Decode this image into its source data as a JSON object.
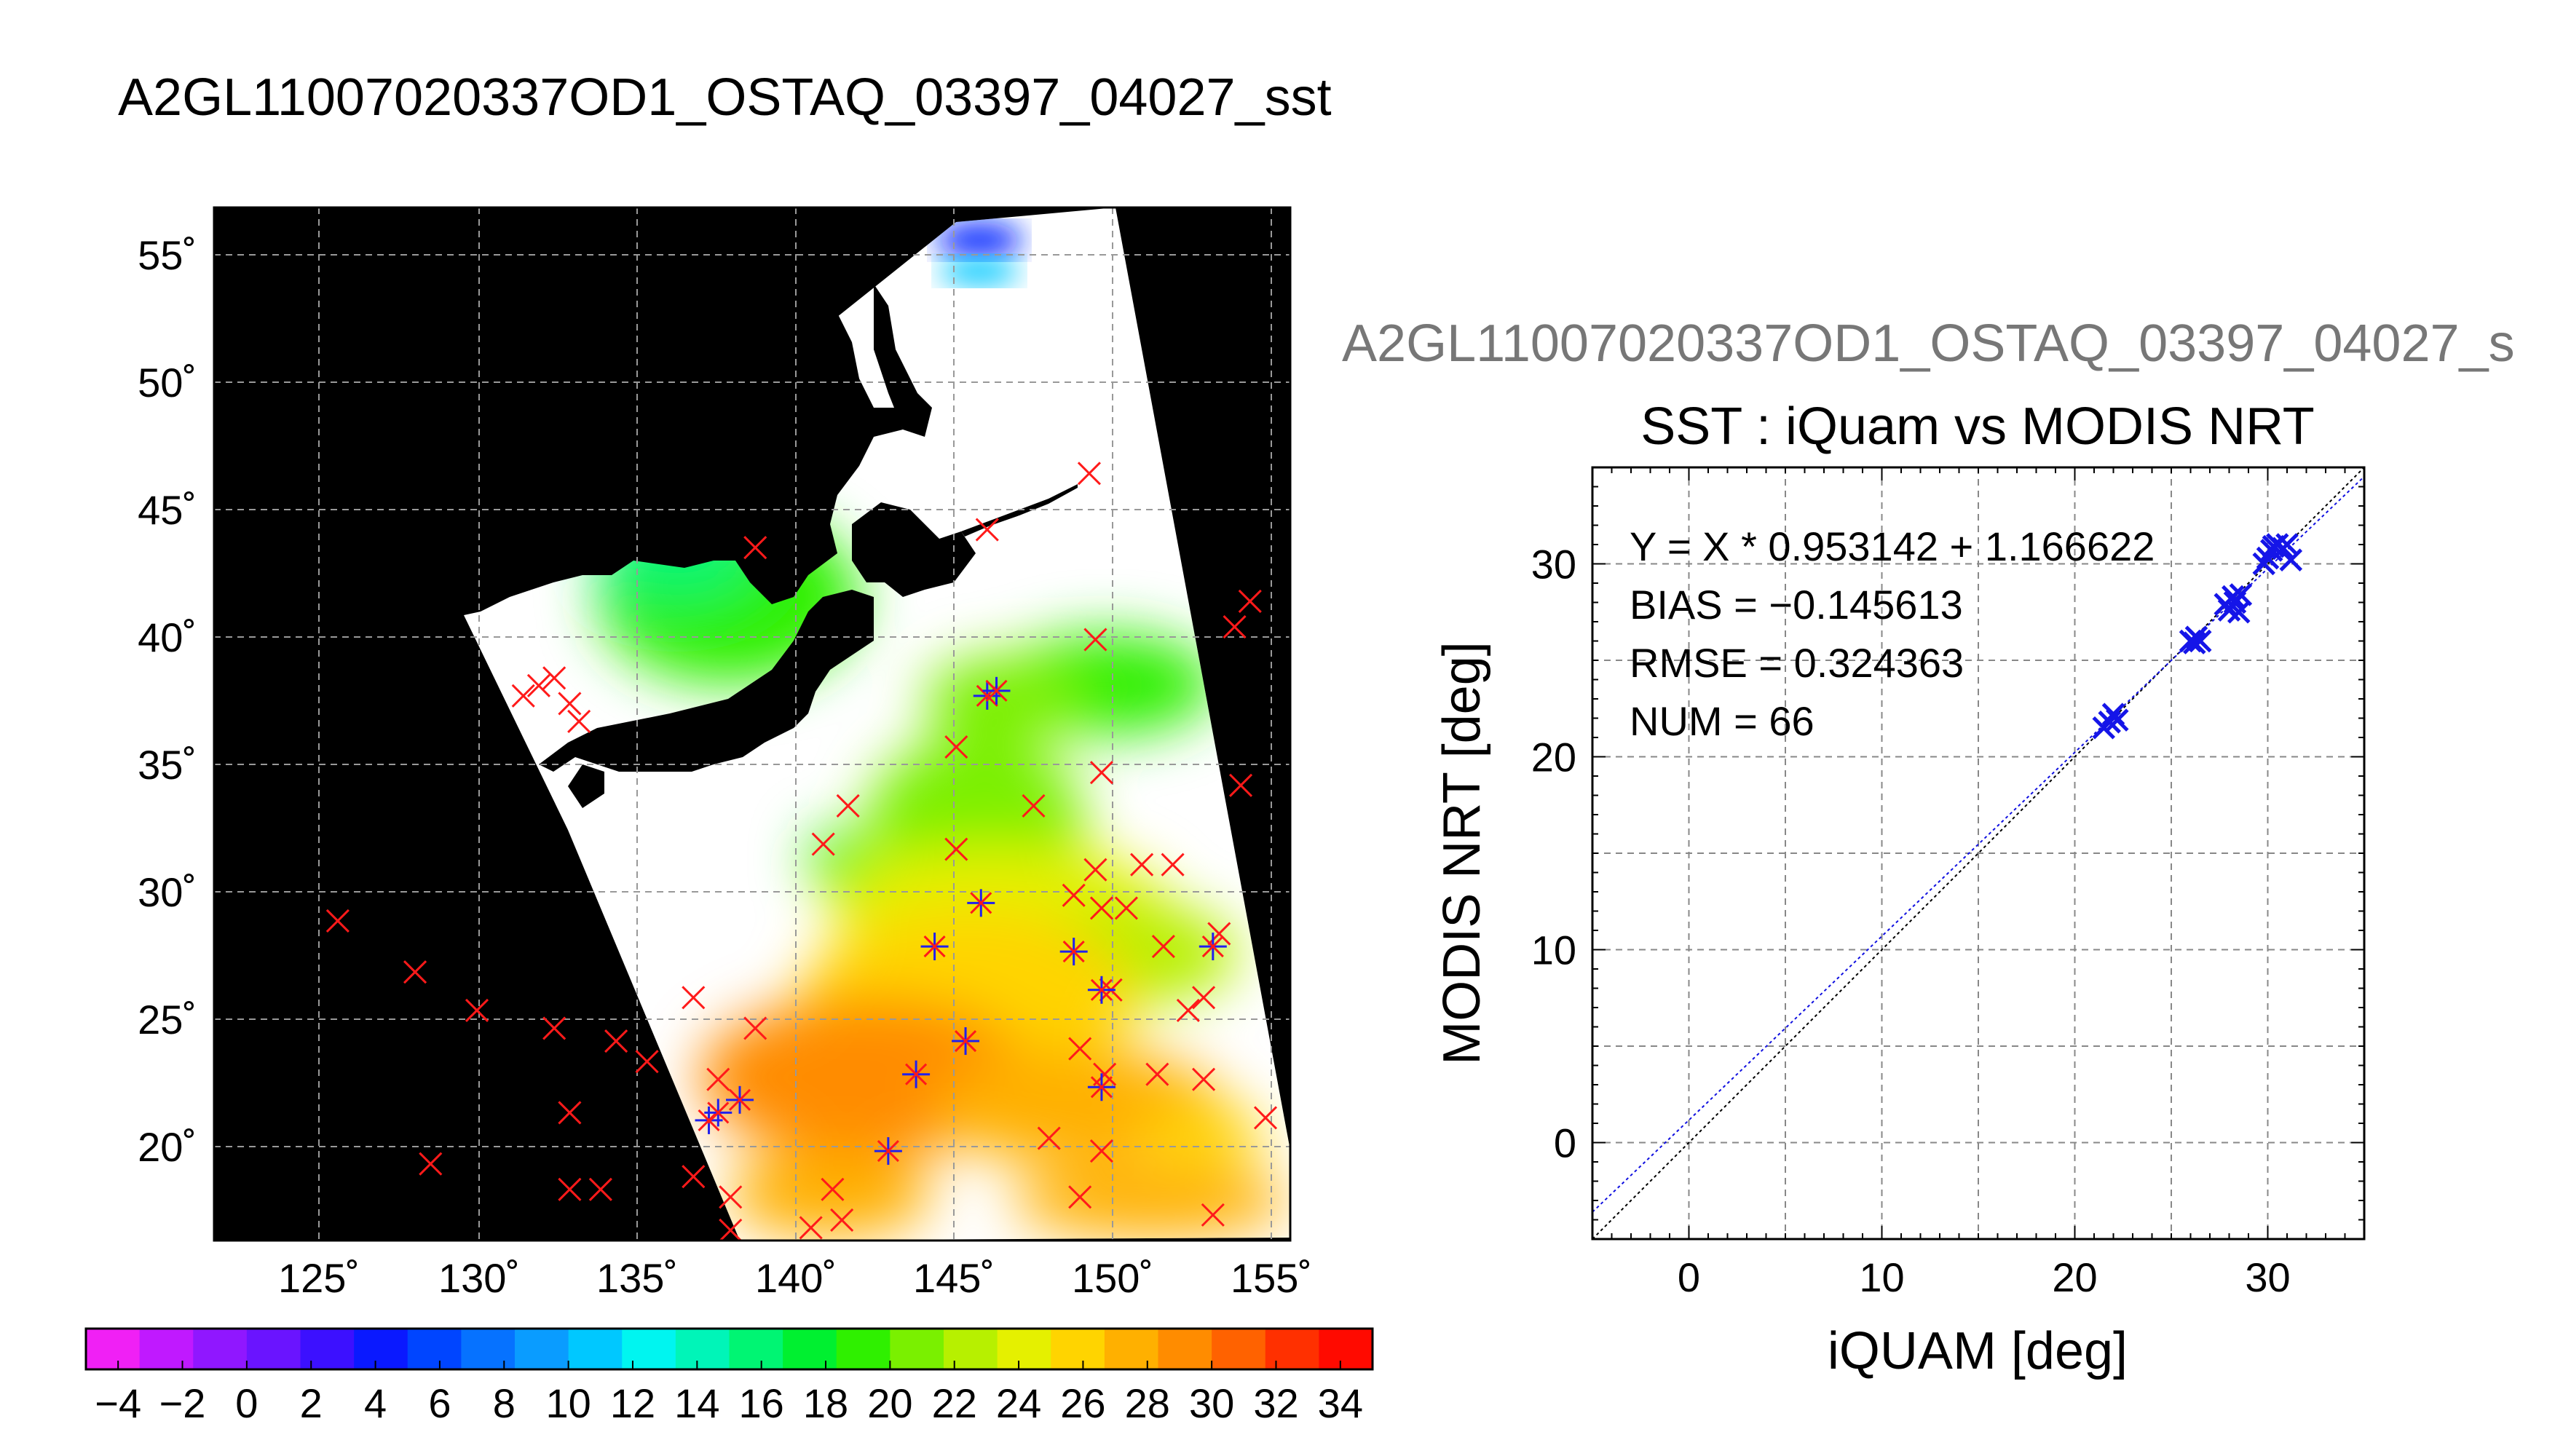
{
  "map_title": "A2GL11007020337OD1_OSTAQ_03397_04027_sst",
  "scatter_header": "A2GL11007020337OD1_OSTAQ_03397_04027_s",
  "chart_data": [
    {
      "type": "heatmap",
      "x_ticks": [
        "125˚",
        "130˚",
        "135˚",
        "140˚",
        "145˚",
        "150˚",
        "155˚"
      ],
      "y_ticks": [
        "55˚",
        "50˚",
        "45˚",
        "40˚",
        "35˚",
        "30˚",
        "25˚",
        "20˚"
      ],
      "lon_range": [
        121.5,
        156.3
      ],
      "lat_range": [
        16.5,
        56.9
      ],
      "colorbar": {
        "range": [
          -5,
          35
        ],
        "tick_labels": [
          "−4",
          "−2",
          "0",
          "2",
          "4",
          "6",
          "8",
          "10",
          "12",
          "14",
          "16",
          "18",
          "20",
          "22",
          "24",
          "26",
          "28",
          "30",
          "32",
          "34"
        ],
        "colors": [
          "#f020f5",
          "#c019ff",
          "#9017ff",
          "#6a14ff",
          "#3c10ff",
          "#0a19ff",
          "#0045ff",
          "#0672ff",
          "#0a9cff",
          "#00c8ff",
          "#00f5f0",
          "#00f5b8",
          "#00f573",
          "#00f030",
          "#2ff000",
          "#7af000",
          "#b7f000",
          "#e5f000",
          "#ffd400",
          "#ffb000",
          "#ff8c00",
          "#ff6200",
          "#ff3000",
          "#ff0a00"
        ]
      },
      "iquam_points_red": [
        {
          "lon": 125.5,
          "lat": 29
        },
        {
          "lon": 128,
          "lat": 27
        },
        {
          "lon": 128.5,
          "lat": 19.5
        },
        {
          "lon": 130,
          "lat": 25.5
        },
        {
          "lon": 131.5,
          "lat": 37.8
        },
        {
          "lon": 132,
          "lat": 38.2
        },
        {
          "lon": 132.5,
          "lat": 38.5
        },
        {
          "lon": 133,
          "lat": 37.5
        },
        {
          "lon": 133.3,
          "lat": 36.8
        },
        {
          "lon": 132.5,
          "lat": 24.8
        },
        {
          "lon": 133,
          "lat": 21.5
        },
        {
          "lon": 133,
          "lat": 18.5
        },
        {
          "lon": 134,
          "lat": 18.5
        },
        {
          "lon": 134.5,
          "lat": 24.3
        },
        {
          "lon": 135.5,
          "lat": 23.5
        },
        {
          "lon": 137,
          "lat": 19
        },
        {
          "lon": 137,
          "lat": 26
        },
        {
          "lon": 137.8,
          "lat": 22.8
        },
        {
          "lon": 138.2,
          "lat": 18.2
        },
        {
          "lon": 138.2,
          "lat": 16.9
        },
        {
          "lon": 139,
          "lat": 24.8
        },
        {
          "lon": 139,
          "lat": 43.6
        },
        {
          "lon": 140.8,
          "lat": 17
        },
        {
          "lon": 141.5,
          "lat": 18.5
        },
        {
          "lon": 141.8,
          "lat": 17.3
        },
        {
          "lon": 141.2,
          "lat": 32
        },
        {
          "lon": 142,
          "lat": 33.5
        },
        {
          "lon": 145.5,
          "lat": 35.8
        },
        {
          "lon": 145.5,
          "lat": 31.8
        },
        {
          "lon": 146.5,
          "lat": 44.3
        },
        {
          "lon": 148,
          "lat": 33.5
        },
        {
          "lon": 148.5,
          "lat": 20.5
        },
        {
          "lon": 149.5,
          "lat": 24
        },
        {
          "lon": 149.5,
          "lat": 18.2
        },
        {
          "lon": 149.8,
          "lat": 46.5
        },
        {
          "lon": 150,
          "lat": 40
        },
        {
          "lon": 150.2,
          "lat": 34.8
        },
        {
          "lon": 150,
          "lat": 31
        },
        {
          "lon": 150.2,
          "lat": 29.5
        },
        {
          "lon": 150.5,
          "lat": 26.3
        },
        {
          "lon": 150.3,
          "lat": 23
        },
        {
          "lon": 150.2,
          "lat": 20
        },
        {
          "lon": 151,
          "lat": 29.5
        },
        {
          "lon": 151.5,
          "lat": 31.2
        },
        {
          "lon": 152,
          "lat": 23
        },
        {
          "lon": 152.2,
          "lat": 28
        },
        {
          "lon": 152.5,
          "lat": 31.2
        },
        {
          "lon": 153,
          "lat": 25.5
        },
        {
          "lon": 153.5,
          "lat": 26
        },
        {
          "lon": 153.5,
          "lat": 22.8
        },
        {
          "lon": 153.8,
          "lat": 17.5
        },
        {
          "lon": 154,
          "lat": 28.5
        },
        {
          "lon": 154.5,
          "lat": 40.5
        },
        {
          "lon": 154.7,
          "lat": 34.3
        },
        {
          "lon": 155,
          "lat": 41.5
        },
        {
          "lon": 155.5,
          "lat": 21.3
        },
        {
          "lon": 149.3,
          "lat": 30
        }
      ],
      "matchup_points_blue": [
        {
          "lon": 137.5,
          "lat": 21.2
        },
        {
          "lon": 137.8,
          "lat": 21.5
        },
        {
          "lon": 138.5,
          "lat": 22
        },
        {
          "lon": 143.3,
          "lat": 20
        },
        {
          "lon": 144.2,
          "lat": 23
        },
        {
          "lon": 144.8,
          "lat": 28
        },
        {
          "lon": 145.8,
          "lat": 24.3
        },
        {
          "lon": 146.3,
          "lat": 29.7
        },
        {
          "lon": 146.5,
          "lat": 37.8
        },
        {
          "lon": 146.8,
          "lat": 38
        },
        {
          "lon": 149.3,
          "lat": 27.8
        },
        {
          "lon": 150.2,
          "lat": 26.3
        },
        {
          "lon": 150.2,
          "lat": 22.5
        },
        {
          "lon": 153.8,
          "lat": 28
        }
      ]
    },
    {
      "type": "scatter",
      "title": "SST : iQuam vs MODIS NRT",
      "xlabel": "iQUAM [deg]",
      "ylabel": "MODIS NRT [deg]",
      "xlim": [
        -5,
        35
      ],
      "ylim": [
        -5,
        35
      ],
      "x_ticks": [
        0,
        10,
        20,
        30
      ],
      "y_ticks": [
        0,
        10,
        20,
        30
      ],
      "grid": true,
      "stats": {
        "fit": "Y = X * 0.953142 + 1.166622",
        "bias": "BIAS = −0.145613",
        "rmse": "RMSE = 0.324363",
        "num": "NUM = 66"
      },
      "fit_line": {
        "slope": 0.953142,
        "intercept": 1.166622
      },
      "points": [
        {
          "x": 21.5,
          "y": 21.5
        },
        {
          "x": 21.8,
          "y": 21.8
        },
        {
          "x": 22.0,
          "y": 22.2
        },
        {
          "x": 22.2,
          "y": 21.9
        },
        {
          "x": 26.0,
          "y": 26.0
        },
        {
          "x": 26.3,
          "y": 26.2
        },
        {
          "x": 26.5,
          "y": 26.0
        },
        {
          "x": 26.2,
          "y": 25.9
        },
        {
          "x": 27.8,
          "y": 27.9
        },
        {
          "x": 28.0,
          "y": 27.6
        },
        {
          "x": 28.2,
          "y": 28.3
        },
        {
          "x": 28.5,
          "y": 27.5
        },
        {
          "x": 28.3,
          "y": 28.0
        },
        {
          "x": 28.6,
          "y": 28.4
        },
        {
          "x": 29.8,
          "y": 30.0
        },
        {
          "x": 30.0,
          "y": 30.3
        },
        {
          "x": 30.2,
          "y": 30.7
        },
        {
          "x": 30.5,
          "y": 31.0
        },
        {
          "x": 30.8,
          "y": 30.8
        },
        {
          "x": 31.0,
          "y": 31.0
        },
        {
          "x": 31.2,
          "y": 30.2
        },
        {
          "x": 30.3,
          "y": 30.9
        }
      ]
    }
  ]
}
